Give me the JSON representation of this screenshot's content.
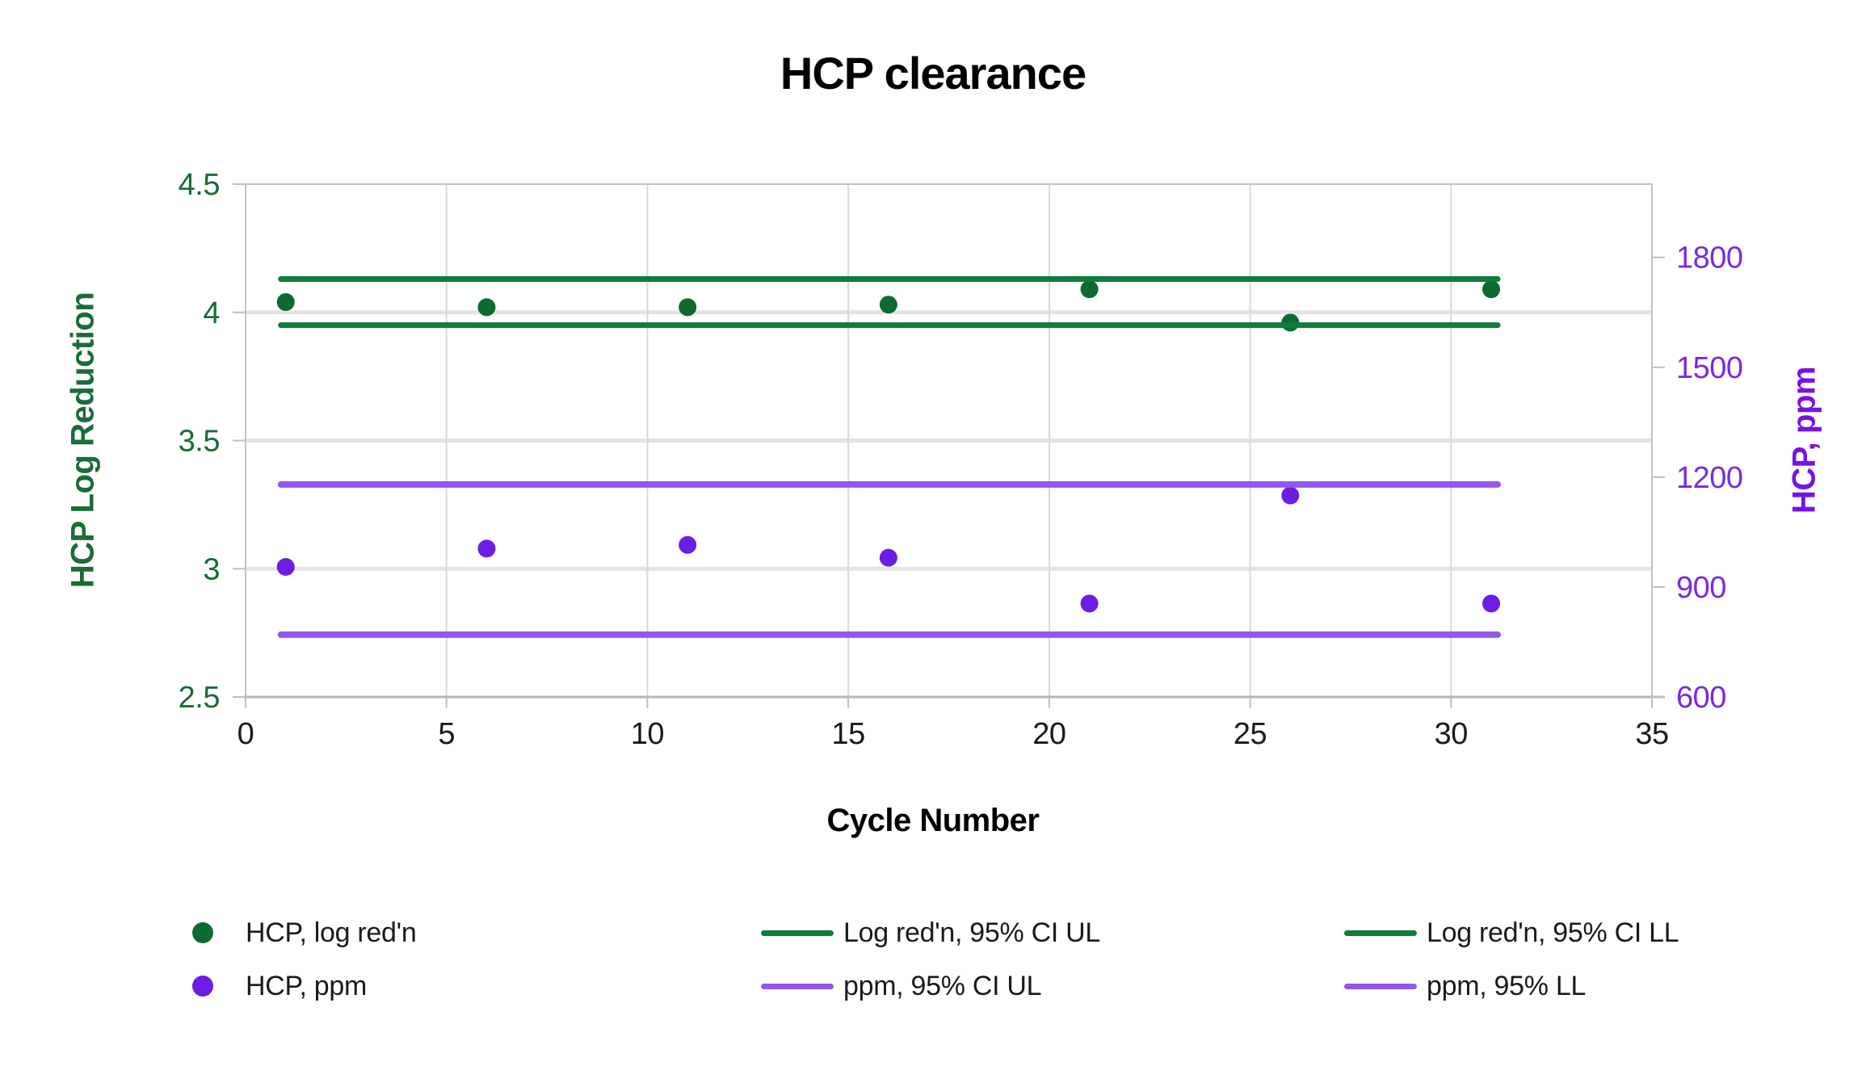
{
  "chart_data": {
    "type": "scatter",
    "title": "HCP clearance",
    "xlabel": "Cycle Number",
    "x": [
      1,
      6,
      11,
      16,
      21,
      26,
      31
    ],
    "xlim": [
      0,
      35
    ],
    "x_ticks": [
      0,
      5,
      10,
      15,
      20,
      25,
      30,
      35
    ],
    "y_left": {
      "label": "HCP Log Reduction",
      "lim": [
        2.5,
        4.5
      ],
      "ticks": [
        "4.5",
        "4",
        "3.5",
        "3",
        "2.5"
      ],
      "tick_values": [
        4.5,
        4,
        3.5,
        3,
        2.5
      ],
      "color": "#1a6b35"
    },
    "y_right": {
      "label": "HCP, ppm",
      "lim": [
        600,
        2000
      ],
      "ticks": [
        "1800",
        "1500",
        "1200",
        "900",
        "600"
      ],
      "tick_values": [
        1800,
        1500,
        1200,
        900,
        600
      ],
      "color": "#7a2ae0"
    },
    "series": [
      {
        "name": "HCP, log red'n",
        "axis": "left",
        "kind": "points",
        "marker": "circle",
        "color": "#0d6a30",
        "values": [
          4.04,
          4.02,
          4.02,
          4.03,
          4.09,
          3.96,
          4.09
        ]
      },
      {
        "name": "Log red'n, 95% CI UL",
        "axis": "left",
        "kind": "hline",
        "marker": "line",
        "color": "#0e7c3c",
        "value": 4.13,
        "x_span": [
          1,
          31
        ]
      },
      {
        "name": "Log red'n, 95% CI LL",
        "axis": "left",
        "kind": "hline",
        "marker": "line",
        "color": "#0e7c3c",
        "value": 3.95,
        "x_span": [
          1,
          31
        ]
      },
      {
        "name": "HCP, ppm",
        "axis": "right",
        "kind": "points",
        "marker": "circle",
        "color": "#6d1ce2",
        "values": [
          955,
          1005,
          1015,
          980,
          855,
          1150,
          855
        ]
      },
      {
        "name": "ppm, 95% CI UL",
        "axis": "right",
        "kind": "hline",
        "marker": "line",
        "color": "#9257ec",
        "value": 1180,
        "x_span": [
          1,
          31
        ]
      },
      {
        "name": "ppm, 95% LL",
        "axis": "right",
        "kind": "hline",
        "marker": "line",
        "color": "#9257ec",
        "value": 770,
        "x_span": [
          1,
          31
        ]
      }
    ],
    "grid": {
      "vertical": true,
      "horizontal": true
    },
    "legend_position": "bottom"
  },
  "colors": {
    "grid_vertical": "#d9d9d9",
    "grid_horizontal": "#e3e3e3",
    "plot_border": "#c2c2c2",
    "axis_bottom": "#b5b5b5",
    "tick": "#bfbfbf",
    "x_tick_text": "#1a1a1a",
    "title_text": "#000000"
  }
}
